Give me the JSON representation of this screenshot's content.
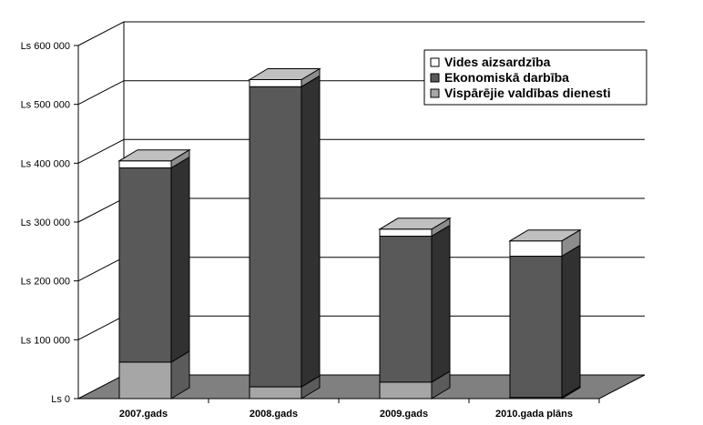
{
  "chart_data": {
    "type": "bar",
    "stacked": true,
    "three_d": true,
    "categories": [
      "2007.gads",
      "2008.gads",
      "2009.gads",
      "2010.gada plāns"
    ],
    "series": [
      {
        "name": "Vispārējie valdības dienesti",
        "values": [
          62000,
          20000,
          28000,
          2000
        ],
        "color": "#a6a6a6"
      },
      {
        "name": "Ekonomiskā darbība",
        "values": [
          330000,
          510000,
          248000,
          240000
        ],
        "color": "#595959"
      },
      {
        "name": "Vides aizsardzība",
        "values": [
          12000,
          12000,
          12000,
          26000
        ],
        "color": "#ffffff"
      }
    ],
    "yticks": [
      "Ls 0",
      "Ls 100 000",
      "Ls 200 000",
      "Ls 300 000",
      "Ls 400 000",
      "Ls 500 000",
      "Ls 600 000"
    ],
    "ylim": [
      0,
      600000
    ],
    "grid": true,
    "legend": "top-right",
    "legend_order": [
      "Vides aizsardzība",
      "Ekonomiskā darbība",
      "Vispārējie valdības dienesti"
    ],
    "floor_color": "#808080"
  }
}
